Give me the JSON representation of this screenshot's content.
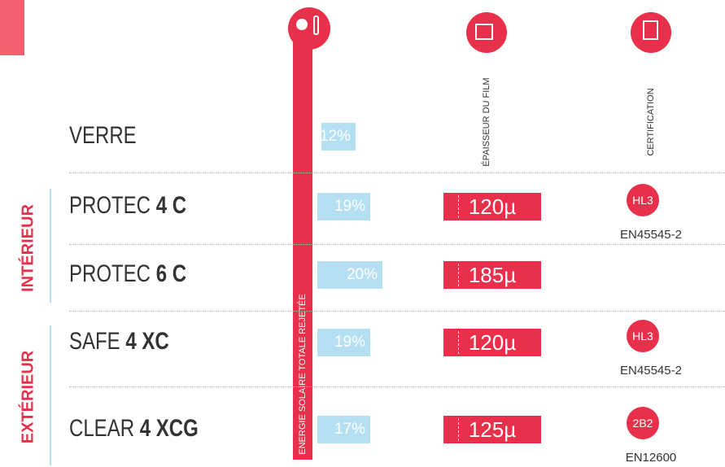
{
  "columns": {
    "energy": "ENERGIE SOLAIRE TOTALE REJETÉE",
    "thickness": "ÉPAISSEUR DU FILM",
    "certification": "CERTIFICATION"
  },
  "groups": [
    {
      "label": "INTÉRIEUR"
    },
    {
      "label": "EXTÉRIEUR"
    }
  ],
  "rows": [
    {
      "name": "VERRE",
      "energy": "12%"
    },
    {
      "name": "PROTEC",
      "model": "4 C",
      "energy": "19%",
      "thickness": "120µ",
      "badge": "HL3",
      "standard": "EN45545-2"
    },
    {
      "name": "PROTEC",
      "model": "6 C",
      "energy": "20%",
      "thickness": "185µ"
    },
    {
      "name": "SAFE",
      "model": "4 XC",
      "energy": "19%",
      "thickness": "120µ",
      "badge": "HL3",
      "standard": "EN45545-2"
    },
    {
      "name": "CLEAR",
      "model": "4 XCG",
      "energy": "17%",
      "thickness": "125µ",
      "badge": "2B2",
      "standard": "EN12600"
    }
  ]
}
